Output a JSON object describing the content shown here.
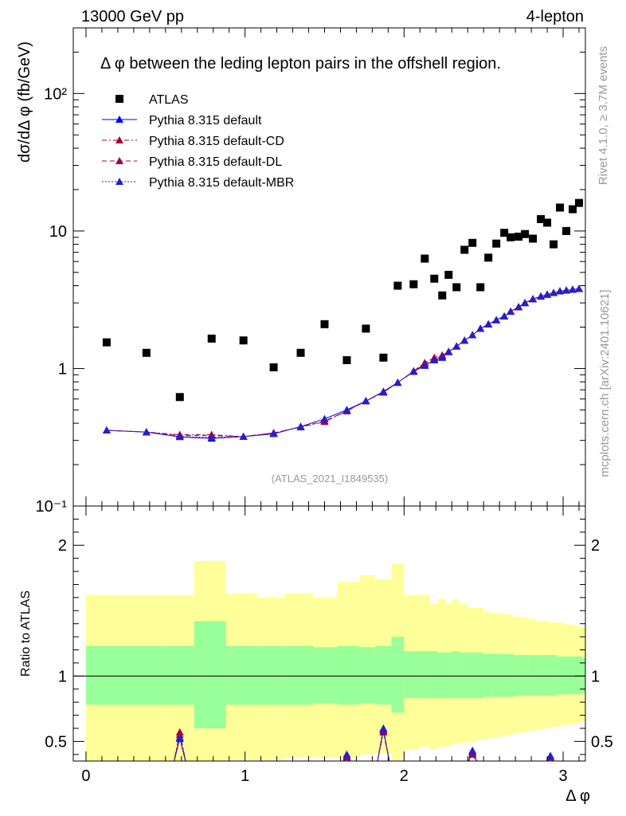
{
  "header": {
    "left": "13000 GeV pp",
    "right": "4-lepton"
  },
  "side_text": {
    "rivet": "Rivet 4.1.0, ≥ 3.7M events",
    "mcplots": "mcplots.cern.ch [arXiv:2401.10621]"
  },
  "watermark": "(ATLAS_2021_I1849535)",
  "colors": {
    "mc1": "#0000ff",
    "mc2": "#a00040",
    "mc3": "#a00050",
    "mc4": "#2020d0",
    "green": "#99ff99",
    "yellow": "#ffff99"
  },
  "chart_data": {
    "type": "scatter",
    "title": "Δ φ between the leding lepton pairs in the offshell region.",
    "xlabel": "Δ φ",
    "ylabel": "dσ/dΔ φ (fb/GeV)",
    "ratio_ylabel": "Ratio to ATLAS",
    "xlim": [
      -0.08,
      3.14
    ],
    "ylim": [
      0.1,
      300
    ],
    "ratio_ylim": [
      0.35,
      2.3
    ],
    "yscale": "log",
    "x_ticks": [
      "0",
      "1",
      "2",
      "3"
    ],
    "y_ticks": [
      "10⁻¹",
      "1",
      "10",
      "10²"
    ],
    "ratio_ticks": [
      "0.5",
      "1",
      "2"
    ],
    "legend": [
      "ATLAS",
      "Pythia 8.315 default",
      "Pythia 8.315 default-CD",
      "Pythia 8.315 default-DL",
      "Pythia 8.315 default-MBR"
    ],
    "legend_position": "top-left",
    "atlas": {
      "x": [
        0.13,
        0.38,
        0.59,
        0.79,
        0.99,
        1.18,
        1.35,
        1.5,
        1.64,
        1.76,
        1.87,
        1.96,
        2.06,
        2.13,
        2.19,
        2.24,
        2.28,
        2.33,
        2.38,
        2.43,
        2.48,
        2.53,
        2.58,
        2.63,
        2.67,
        2.72,
        2.76,
        2.81,
        2.86,
        2.9,
        2.94,
        2.98,
        3.02,
        3.06,
        3.1
      ],
      "y": [
        1.55,
        1.3,
        0.62,
        1.65,
        1.6,
        1.02,
        1.3,
        2.1,
        1.15,
        1.95,
        1.2,
        4.0,
        4.1,
        6.3,
        4.5,
        3.4,
        4.8,
        3.9,
        7.3,
        8.2,
        3.9,
        6.4,
        8.1,
        9.7,
        9.0,
        9.1,
        9.5,
        8.8,
        12.2,
        11.5,
        8.0,
        14.8,
        10.0,
        14.4,
        16.0
      ]
    },
    "mc_x": [
      0.13,
      0.38,
      0.59,
      0.79,
      0.99,
      1.18,
      1.35,
      1.5,
      1.64,
      1.76,
      1.87,
      1.96,
      2.06,
      2.13,
      2.19,
      2.24,
      2.28,
      2.33,
      2.38,
      2.43,
      2.48,
      2.53,
      2.58,
      2.63,
      2.67,
      2.72,
      2.76,
      2.81,
      2.86,
      2.9,
      2.94,
      2.98,
      3.02,
      3.06,
      3.1
    ],
    "series": [
      {
        "name": "Pythia 8.315 default",
        "style": "solid",
        "values": [
          0.355,
          0.345,
          0.318,
          0.31,
          0.32,
          0.335,
          0.378,
          0.43,
          0.5,
          0.58,
          0.68,
          0.79,
          0.95,
          1.05,
          1.15,
          1.2,
          1.32,
          1.45,
          1.6,
          1.75,
          1.95,
          2.1,
          2.25,
          2.4,
          2.6,
          2.8,
          3.0,
          3.2,
          3.35,
          3.45,
          3.55,
          3.65,
          3.7,
          3.75,
          3.8
        ]
      },
      {
        "name": "Pythia 8.315 default-CD",
        "style": "dashdot",
        "values": [
          0.355,
          0.345,
          0.33,
          0.33,
          0.32,
          0.34,
          0.375,
          0.41,
          0.49,
          0.58,
          0.67,
          0.79,
          0.96,
          1.1,
          1.2,
          1.25,
          1.33,
          1.45,
          1.6,
          1.75,
          1.95,
          2.1,
          2.25,
          2.4,
          2.6,
          2.8,
          3.0,
          3.2,
          3.35,
          3.45,
          3.55,
          3.65,
          3.7,
          3.75,
          3.8
        ]
      },
      {
        "name": "Pythia 8.315 default-DL",
        "style": "dashed",
        "values": [
          0.355,
          0.345,
          0.325,
          0.325,
          0.32,
          0.34,
          0.375,
          0.415,
          0.49,
          0.58,
          0.67,
          0.79,
          0.95,
          1.08,
          1.18,
          1.23,
          1.32,
          1.45,
          1.6,
          1.75,
          1.95,
          2.1,
          2.25,
          2.4,
          2.6,
          2.8,
          3.0,
          3.2,
          3.35,
          3.45,
          3.55,
          3.65,
          3.7,
          3.75,
          3.8
        ]
      },
      {
        "name": "Pythia 8.315 default-MBR",
        "style": "dotted",
        "values": [
          0.355,
          0.345,
          0.32,
          0.315,
          0.32,
          0.335,
          0.378,
          0.43,
          0.5,
          0.58,
          0.68,
          0.79,
          0.95,
          1.05,
          1.15,
          1.2,
          1.32,
          1.45,
          1.6,
          1.75,
          1.95,
          2.1,
          2.25,
          2.4,
          2.6,
          2.8,
          3.0,
          3.2,
          3.35,
          3.45,
          3.55,
          3.65,
          3.7,
          3.75,
          3.8
        ]
      }
    ],
    "ratio_band_edges": [
      0.0,
      0.5,
      0.68,
      0.88,
      1.08,
      1.25,
      1.43,
      1.58,
      1.72,
      1.82,
      1.92,
      2.0,
      2.1,
      2.16,
      2.21,
      2.26,
      2.3,
      2.35,
      2.4,
      2.45,
      2.5,
      2.55,
      2.6,
      2.64,
      2.69,
      2.74,
      2.78,
      2.83,
      2.88,
      2.92,
      2.96,
      3.0,
      3.04,
      3.08,
      3.12,
      3.14
    ],
    "ratio_stat": [
      [
        0.78,
        1.23
      ],
      [
        0.78,
        1.23
      ],
      [
        0.6,
        1.42
      ],
      [
        0.78,
        1.23
      ],
      [
        0.78,
        1.23
      ],
      [
        0.78,
        1.23
      ],
      [
        0.79,
        1.22
      ],
      [
        0.78,
        1.23
      ],
      [
        0.79,
        1.22
      ],
      [
        0.78,
        1.23
      ],
      [
        0.72,
        1.3
      ],
      [
        0.83,
        1.19
      ],
      [
        0.83,
        1.19
      ],
      [
        0.83,
        1.19
      ],
      [
        0.83,
        1.18
      ],
      [
        0.83,
        1.18
      ],
      [
        0.83,
        1.19
      ],
      [
        0.83,
        1.18
      ],
      [
        0.83,
        1.18
      ],
      [
        0.83,
        1.18
      ],
      [
        0.84,
        1.17
      ],
      [
        0.84,
        1.17
      ],
      [
        0.84,
        1.17
      ],
      [
        0.84,
        1.17
      ],
      [
        0.85,
        1.16
      ],
      [
        0.85,
        1.16
      ],
      [
        0.85,
        1.16
      ],
      [
        0.85,
        1.16
      ],
      [
        0.85,
        1.16
      ],
      [
        0.85,
        1.16
      ],
      [
        0.86,
        1.15
      ],
      [
        0.86,
        1.15
      ],
      [
        0.86,
        1.15
      ],
      [
        0.86,
        1.15
      ],
      [
        0.87,
        1.14
      ]
    ],
    "ratio_syst": [
      [
        0.34,
        1.62
      ],
      [
        0.35,
        1.62
      ],
      [
        0.3,
        1.88
      ],
      [
        0.36,
        1.63
      ],
      [
        0.36,
        1.6
      ],
      [
        0.38,
        1.63
      ],
      [
        0.38,
        1.6
      ],
      [
        0.38,
        1.72
      ],
      [
        0.4,
        1.77
      ],
      [
        0.41,
        1.74
      ],
      [
        0.36,
        1.86
      ],
      [
        0.44,
        1.62
      ],
      [
        0.46,
        1.62
      ],
      [
        0.44,
        1.55
      ],
      [
        0.46,
        1.59
      ],
      [
        0.46,
        1.55
      ],
      [
        0.48,
        1.58
      ],
      [
        0.49,
        1.55
      ],
      [
        0.5,
        1.52
      ],
      [
        0.51,
        1.52
      ],
      [
        0.52,
        1.49
      ],
      [
        0.53,
        1.48
      ],
      [
        0.54,
        1.48
      ],
      [
        0.55,
        1.47
      ],
      [
        0.56,
        1.45
      ],
      [
        0.57,
        1.45
      ],
      [
        0.58,
        1.44
      ],
      [
        0.59,
        1.42
      ],
      [
        0.6,
        1.42
      ],
      [
        0.61,
        1.41
      ],
      [
        0.62,
        1.41
      ],
      [
        0.62,
        1.4
      ],
      [
        0.63,
        1.39
      ],
      [
        0.64,
        1.38
      ],
      [
        0.65,
        1.37
      ]
    ],
    "ratio_spikes": [
      {
        "x": 0.59,
        "values": [
          0.53,
          0.57,
          0.55,
          0.52
        ]
      },
      {
        "x": 1.64,
        "values": [
          0.38,
          0.38,
          0.39,
          0.4
        ]
      },
      {
        "x": 1.87,
        "values": [
          0.59,
          0.57,
          0.58,
          0.6
        ]
      },
      {
        "x": 2.43,
        "values": [
          0.42,
          0.4,
          0.41,
          0.43
        ]
      },
      {
        "x": 2.92,
        "values": [
          0.38,
          0.38,
          0.38,
          0.39
        ]
      }
    ]
  }
}
